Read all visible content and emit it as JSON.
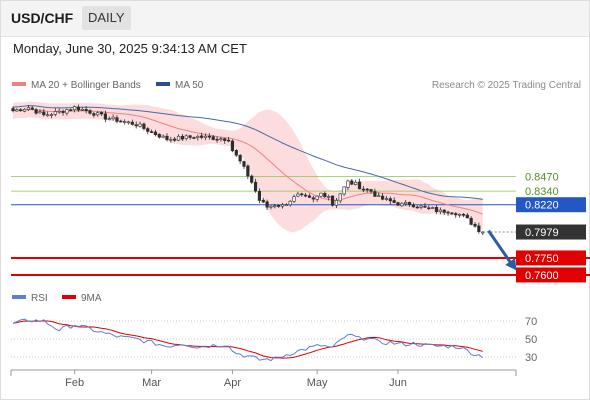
{
  "header": {
    "symbol": "USD/CHF",
    "timeframe": "DAILY"
  },
  "datetime": "Monday, June 30, 2025 9:34:13 AM CET",
  "legend": {
    "ma20_label": "MA 20 + Bollinger Bands",
    "ma50_label": "MA 50",
    "rsi_label": "RSI",
    "rsi_ma_label": "9MA",
    "credit": "Research © 2025 Trading Central"
  },
  "colors": {
    "ma20": "#f08080",
    "band_fill": "#fcd6d6",
    "ma50": "#4a6aa5",
    "candle": "#2d2d2d",
    "resistance": "#8fc25a",
    "pivot": "#2358c4",
    "support": "#e00000",
    "current": "#333333",
    "arrow": "#2d5ca0",
    "rsi": "#5a7fd6",
    "rsi_ma": "#e00000"
  },
  "chart_data": [
    {
      "type": "candlestick",
      "title": "USD/CHF",
      "ylim": [
        0.752,
        0.918
      ],
      "price_levels": [
        {
          "label": "0.8470",
          "value": 0.847,
          "kind": "resistance"
        },
        {
          "label": "0.8340",
          "value": 0.834,
          "kind": "resistance"
        },
        {
          "label": "0.8220",
          "value": 0.822,
          "kind": "pivot"
        },
        {
          "label": "0.7979",
          "value": 0.7979,
          "kind": "current"
        },
        {
          "label": "0.7750",
          "value": 0.775,
          "kind": "support"
        },
        {
          "label": "0.7600",
          "value": 0.76,
          "kind": "support"
        }
      ],
      "x_ticks": [
        {
          "label": "Feb",
          "index": 16
        },
        {
          "label": "Mar",
          "index": 36
        },
        {
          "label": "Apr",
          "index": 57
        },
        {
          "label": "May",
          "index": 79
        },
        {
          "label": "Jun",
          "index": 100
        }
      ],
      "close_waypoints": [
        [
          0,
          0.905
        ],
        [
          4,
          0.908
        ],
        [
          8,
          0.901
        ],
        [
          12,
          0.904
        ],
        [
          16,
          0.908
        ],
        [
          20,
          0.904
        ],
        [
          24,
          0.899
        ],
        [
          28,
          0.896
        ],
        [
          32,
          0.893
        ],
        [
          36,
          0.886
        ],
        [
          40,
          0.88
        ],
        [
          44,
          0.881
        ],
        [
          48,
          0.882
        ],
        [
          52,
          0.881
        ],
        [
          56,
          0.88
        ],
        [
          57,
          0.87
        ],
        [
          59,
          0.86
        ],
        [
          62,
          0.842
        ],
        [
          64,
          0.826
        ],
        [
          66,
          0.82
        ],
        [
          68,
          0.822
        ],
        [
          70,
          0.821
        ],
        [
          72,
          0.826
        ],
        [
          74,
          0.83
        ],
        [
          76,
          0.828
        ],
        [
          78,
          0.826
        ],
        [
          80,
          0.832
        ],
        [
          82,
          0.83
        ],
        [
          83,
          0.822
        ],
        [
          85,
          0.832
        ],
        [
          87,
          0.842
        ],
        [
          89,
          0.84
        ],
        [
          91,
          0.836
        ],
        [
          93,
          0.834
        ],
        [
          95,
          0.828
        ],
        [
          97,
          0.826
        ],
        [
          99,
          0.824
        ],
        [
          101,
          0.822
        ],
        [
          103,
          0.823
        ],
        [
          105,
          0.821
        ],
        [
          107,
          0.819
        ],
        [
          109,
          0.818
        ],
        [
          111,
          0.816
        ],
        [
          113,
          0.817
        ],
        [
          115,
          0.815
        ],
        [
          117,
          0.812
        ],
        [
          119,
          0.806
        ],
        [
          121,
          0.8
        ],
        [
          122,
          0.7979
        ]
      ],
      "forecast": {
        "from_index": 123,
        "from_value": 0.799,
        "to_index": 130,
        "to_value": 0.764
      }
    },
    {
      "type": "line",
      "title": "RSI",
      "ylim": [
        20,
        80
      ],
      "y_ticks": [
        70,
        50,
        30
      ],
      "rsi_waypoints": [
        [
          0,
          67
        ],
        [
          4,
          71
        ],
        [
          8,
          70
        ],
        [
          12,
          60
        ],
        [
          16,
          66
        ],
        [
          20,
          61
        ],
        [
          24,
          56
        ],
        [
          28,
          52
        ],
        [
          32,
          50
        ],
        [
          36,
          46
        ],
        [
          40,
          42
        ],
        [
          44,
          45
        ],
        [
          48,
          41
        ],
        [
          52,
          43
        ],
        [
          56,
          44
        ],
        [
          57,
          36
        ],
        [
          60,
          32
        ],
        [
          64,
          27
        ],
        [
          68,
          28
        ],
        [
          72,
          34
        ],
        [
          76,
          39
        ],
        [
          80,
          43
        ],
        [
          83,
          40
        ],
        [
          86,
          52
        ],
        [
          88,
          54
        ],
        [
          90,
          50
        ],
        [
          92,
          52
        ],
        [
          95,
          46
        ],
        [
          98,
          46
        ],
        [
          101,
          44
        ],
        [
          104,
          45
        ],
        [
          107,
          43
        ],
        [
          110,
          42
        ],
        [
          113,
          42
        ],
        [
          116,
          41
        ],
        [
          118,
          37
        ],
        [
          120,
          33
        ],
        [
          122,
          31
        ]
      ]
    }
  ]
}
